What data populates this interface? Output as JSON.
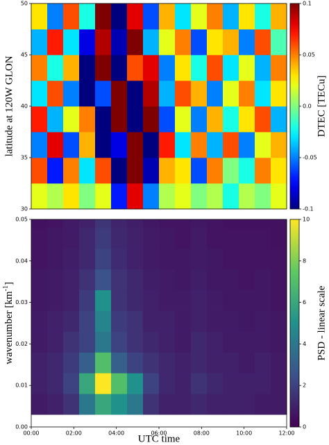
{
  "chart_data": [
    {
      "type": "heatmap",
      "ylabel": "latitude at 120W GLON",
      "colorbar_label": "DTEC [TECu]",
      "colormap": "jet",
      "xbins": [
        0,
        0.75,
        1.5,
        2.25,
        3,
        3.75,
        4.5,
        5.25,
        6,
        6.75,
        7.5,
        8.25,
        9,
        9.75,
        10.5,
        11.25,
        12
      ],
      "ybins": [
        30,
        32.5,
        35,
        37.5,
        40,
        42.5,
        45,
        47.5,
        50
      ],
      "xlim": [
        0,
        12
      ],
      "ylim": [
        30,
        50
      ],
      "yticks": [
        30,
        35,
        40,
        45,
        50
      ],
      "clim": [
        -0.1,
        0.1
      ],
      "cticks": [
        -0.1,
        -0.05,
        {
          "value": 0,
          "label": "0.0"
        },
        0.05,
        0.1
      ],
      "z": [
        [
          0.02,
          0.01,
          0.03,
          0.0,
          0.02,
          -0.07,
          0.08,
          -0.05,
          0.01,
          0.02,
          0.0,
          0.01,
          -0.02,
          0.01,
          0.0,
          0.02
        ],
        [
          0.06,
          -0.07,
          0.05,
          -0.03,
          0.06,
          -0.1,
          0.1,
          -0.09,
          0.04,
          0.03,
          -0.06,
          0.05,
          0.0,
          -0.02,
          0.05,
          0.03
        ],
        [
          -0.05,
          0.08,
          -0.06,
          0.04,
          -0.1,
          -0.08,
          0.1,
          -0.1,
          0.07,
          -0.03,
          0.05,
          -0.04,
          0.06,
          -0.05,
          0.02,
          0.04
        ],
        [
          0.07,
          -0.04,
          0.02,
          0.05,
          -0.1,
          0.1,
          -0.1,
          0.1,
          -0.06,
          0.02,
          -0.05,
          0.04,
          -0.02,
          0.03,
          0.06,
          -0.04
        ],
        [
          -0.03,
          0.06,
          -0.05,
          -0.1,
          -0.06,
          0.1,
          -0.1,
          0.09,
          -0.04,
          0.06,
          0.04,
          -0.05,
          0.02,
          0.05,
          -0.03,
          0.03
        ],
        [
          0.05,
          -0.02,
          0.04,
          -0.1,
          0.1,
          -0.1,
          0.06,
          0.08,
          -0.05,
          0.03,
          -0.02,
          0.06,
          -0.03,
          0.02,
          -0.04,
          0.05
        ],
        [
          -0.04,
          0.07,
          -0.03,
          -0.08,
          0.09,
          -0.09,
          0.1,
          -0.04,
          0.02,
          0.05,
          -0.06,
          0.03,
          0.04,
          -0.05,
          0.06,
          -0.01
        ],
        [
          0.03,
          -0.05,
          0.06,
          -0.02,
          0.1,
          -0.1,
          0.08,
          -0.06,
          0.04,
          -0.03,
          0.02,
          0.05,
          -0.04,
          0.03,
          -0.02,
          0.04
        ]
      ]
    },
    {
      "type": "heatmap",
      "ylabel": [
        "wavenumber [km",
        "-1",
        "]"
      ],
      "xlabel": "UTC time",
      "colorbar_label": "PSD - linear scale",
      "colormap": "viridis",
      "xbins": [
        0,
        0.75,
        1.5,
        2.25,
        3,
        3.75,
        4.5,
        5.25,
        6,
        6.75,
        7.5,
        8.25,
        9,
        9.75,
        10.5,
        11.25,
        12
      ],
      "ybins": [
        0.003,
        0.008,
        0.013,
        0.018,
        0.023,
        0.028,
        0.033,
        0.038,
        0.043,
        0.048,
        0.05
      ],
      "xlim": [
        0,
        12
      ],
      "ylim": [
        0,
        0.05
      ],
      "xticks": [
        {
          "value": 0,
          "label": "00:00"
        },
        {
          "value": 2,
          "label": "02:00"
        },
        {
          "value": 4,
          "label": "04:00"
        },
        {
          "value": 6,
          "label": "06:00"
        },
        {
          "value": 8,
          "label": "08:00"
        },
        {
          "value": 10,
          "label": "10:00"
        },
        {
          "value": 12,
          "label": "12:00"
        }
      ],
      "yticks": [
        {
          "value": 0,
          "label": "0.00"
        },
        {
          "value": 0.01,
          "label": "0.01"
        },
        {
          "value": 0.02,
          "label": "0.02"
        },
        {
          "value": 0.03,
          "label": "0.03"
        },
        {
          "value": 0.04,
          "label": "0.04"
        },
        {
          "value": 0.05,
          "label": "0.05"
        }
      ],
      "clim": [
        0,
        10
      ],
      "cticks": [
        0,
        2,
        4,
        6,
        8,
        10
      ],
      "z": [
        [
          0.8,
          1,
          1.5,
          4,
          6,
          5,
          4,
          1.5,
          1,
          1,
          1.2,
          1,
          1,
          1,
          0.8,
          0.8
        ],
        [
          1,
          1.2,
          2,
          6,
          10,
          7,
          5,
          2,
          1.2,
          1,
          1.5,
          1.2,
          1,
          1,
          1,
          0.8
        ],
        [
          1,
          1.2,
          1.8,
          3,
          7,
          3,
          2,
          1.5,
          1.2,
          1,
          1.2,
          1,
          1,
          0.8,
          1,
          0.8
        ],
        [
          0.8,
          1,
          1.5,
          2,
          4,
          2,
          1.5,
          1.2,
          1,
          0.8,
          1.2,
          1,
          0.8,
          0.8,
          0.8,
          0.7
        ],
        [
          0.8,
          1,
          1.2,
          2,
          4.5,
          1.8,
          1.5,
          1,
          1,
          0.8,
          1,
          0.8,
          0.8,
          0.7,
          0.8,
          0.7
        ],
        [
          0.7,
          0.8,
          1,
          1.8,
          5,
          1.5,
          1.2,
          1,
          0.8,
          0.8,
          1,
          0.8,
          0.7,
          0.7,
          0.7,
          0.6
        ],
        [
          0.7,
          0.8,
          1,
          1.5,
          2.5,
          1.5,
          1.2,
          0.9,
          0.8,
          0.7,
          0.9,
          0.7,
          0.7,
          0.6,
          0.7,
          0.6
        ],
        [
          0.6,
          0.7,
          0.9,
          1.2,
          2,
          1.3,
          1,
          0.8,
          0.7,
          0.7,
          0.8,
          0.7,
          0.6,
          0.6,
          0.6,
          0.6
        ],
        [
          0.6,
          0.7,
          0.8,
          1.2,
          1.8,
          1.2,
          1,
          0.8,
          0.7,
          0.6,
          0.8,
          0.6,
          0.6,
          0.6,
          0.6,
          0.5
        ],
        [
          0.5,
          0.6,
          0.8,
          1,
          1.6,
          1.1,
          0.9,
          0.7,
          0.6,
          0.6,
          0.7,
          0.6,
          0.5,
          0.5,
          0.5,
          0.5
        ]
      ]
    }
  ]
}
